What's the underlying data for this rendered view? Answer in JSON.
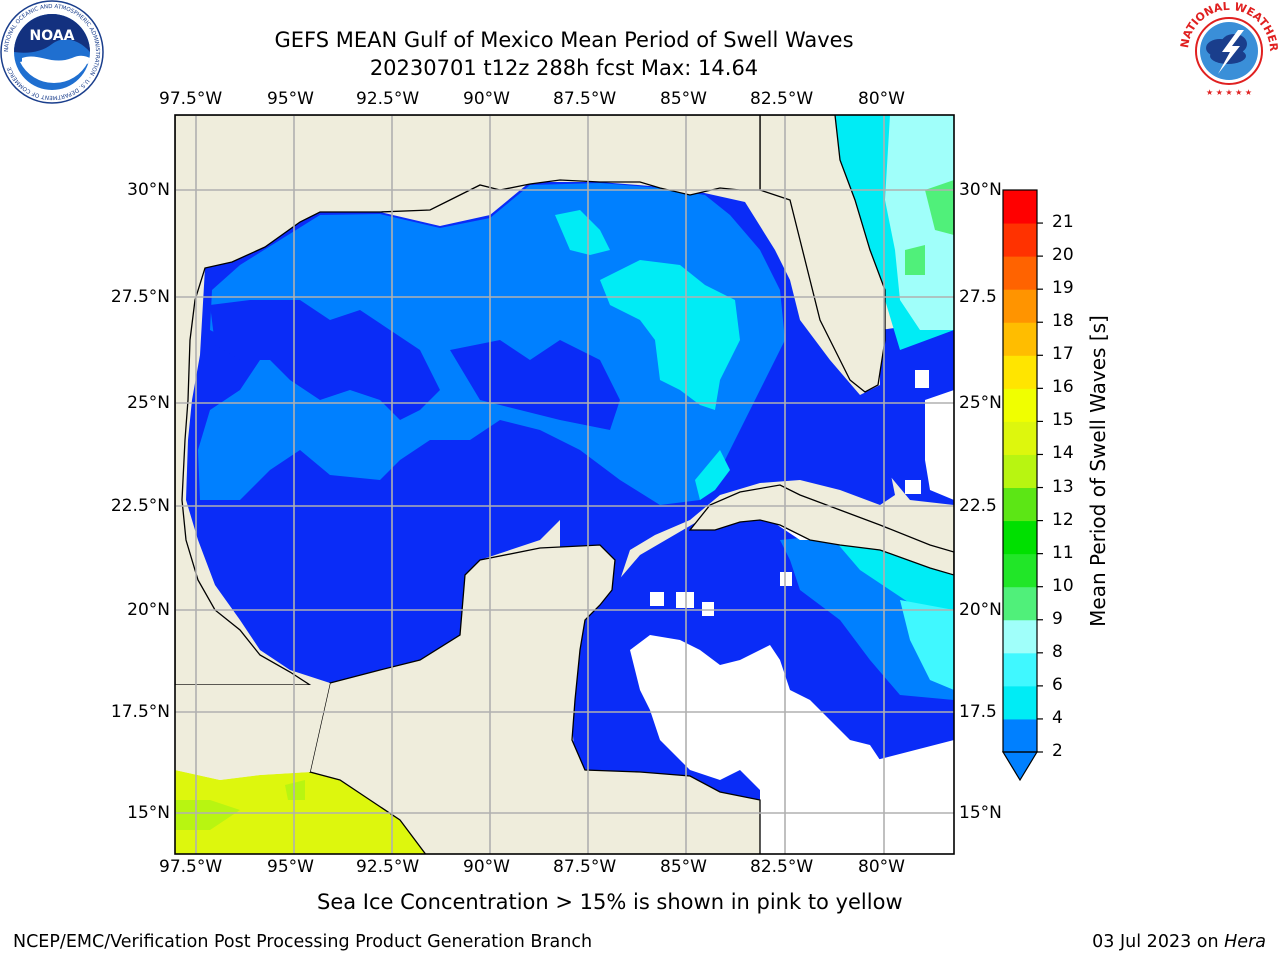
{
  "header": {
    "title_line1": "GEFS MEAN Gulf of Mexico Mean Period of Swell Waves",
    "title_line2": "20230701 t12z 288h fcst   Max: 14.64"
  },
  "logos": {
    "noaa_text": "NOAA",
    "noaa_ring_text": "NATIONAL OCEANIC AND ATMOSPHERIC ADMINISTRATION · U.S. DEPARTMENT OF COMMERCE",
    "nws_ring_text": "NATIONAL WEATHER SERVICE"
  },
  "map": {
    "lon_labels": [
      "97.5°W",
      "95°W",
      "92.5°W",
      "90°W",
      "87.5°W",
      "85°W",
      "82.5°W",
      "80°W"
    ],
    "lat_labels_left": [
      "30°N",
      "27.5°N",
      "25°N",
      "22.5°N",
      "20°N",
      "17.5°N",
      "15°N"
    ],
    "lat_labels_right": [
      "30°N",
      "27.5",
      "25°N",
      "22.5",
      "20°N",
      "17.5",
      "15°N"
    ],
    "colors": {
      "land": "#efeddc",
      "ocean_masked": "#ffffff",
      "grid": "#b0b0b0",
      "coast": "#000000"
    }
  },
  "colorbar": {
    "label": "Mean Period of Swell Waves [s]",
    "ticks": [
      "2",
      "4",
      "6",
      "8",
      "9",
      "10",
      "11",
      "12",
      "13",
      "14",
      "15",
      "16",
      "17",
      "18",
      "19",
      "20",
      "21"
    ],
    "colors": [
      "#0a2cf7",
      "#0080ff",
      "#00ecf5",
      "#40f8ff",
      "#a0fffa",
      "#50f07a",
      "#21e628",
      "#00e000",
      "#5ce615",
      "#b8f511",
      "#ddf70d",
      "#f0ff00",
      "#ffe500",
      "#ffbd00",
      "#ff9400",
      "#ff6300",
      "#ff3200",
      "#ff0000"
    ]
  },
  "footer": {
    "note": "Sea Ice Concentration > 15% is shown in pink to yellow",
    "credit": "NCEP/EMC/Verification Post Processing Product Generation Branch",
    "date": "03 Jul 2023 on ",
    "host": "Hera"
  }
}
